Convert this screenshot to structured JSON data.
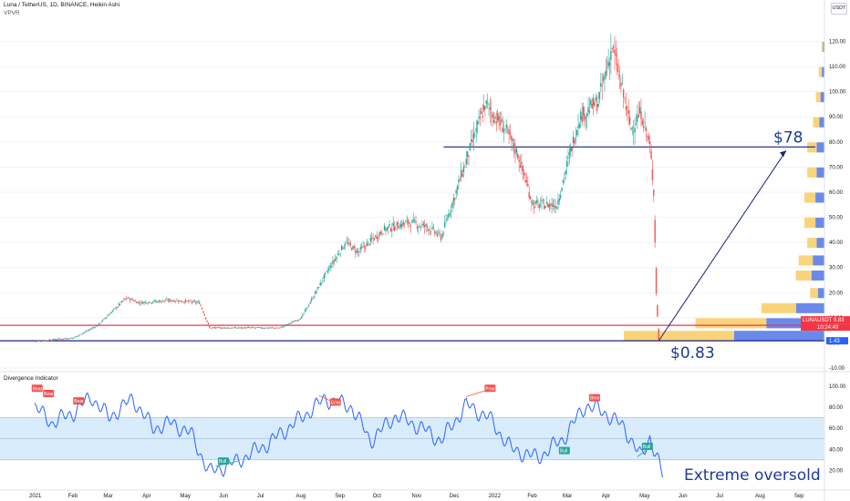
{
  "header": {
    "symbol_title": "Luna / TetherUS, 1D, BINANCE, Heikin Ashi",
    "indicator": "VPVR",
    "currency_button": "USDT"
  },
  "oscillator": {
    "title": "Divergence Indicator"
  },
  "colors": {
    "up": "#26a69a",
    "down": "#ef5350",
    "trendline": "#1a237e",
    "hline_red": "#f23645",
    "vp_yellow": "#f9cd63",
    "vp_blue": "#4f76e8",
    "band": "#d9ecfb",
    "osc_line": "#2962ff",
    "annotation": "#1f3a9a"
  },
  "chart_data": [
    {
      "type": "candlestick",
      "title": "Luna / TetherUS, 1D, BINANCE, Heikin Ashi",
      "x_tick_labels": [
        "2021",
        "Feb",
        "Mar",
        "Apr",
        "May",
        "Jun",
        "Jul",
        "Aug",
        "Sep",
        "Oct",
        "Nov",
        "Dec",
        "2022",
        "Feb",
        "Mar",
        "Apr",
        "May",
        "Jun",
        "Jul",
        "Aug",
        "Sep"
      ],
      "y_tick_labels": [
        "120.00",
        "110.00",
        "100.00",
        "90.00",
        "80.00",
        "70.00",
        "60.00",
        "50.00",
        "40.00",
        "30.00",
        "20.00",
        "10.00",
        "0.00",
        "-10.00"
      ],
      "ylim": [
        -10,
        122
      ],
      "key_points": [
        {
          "x": "2021-01-01",
          "y": 0.7
        },
        {
          "x": "2021-02-01",
          "y": 2
        },
        {
          "x": "2021-02-20",
          "y": 7
        },
        {
          "x": "2021-03-15",
          "y": 18
        },
        {
          "x": "2021-03-25",
          "y": 16
        },
        {
          "x": "2021-04-20",
          "y": 17
        },
        {
          "x": "2021-05-12",
          "y": 16
        },
        {
          "x": "2021-05-20",
          "y": 6
        },
        {
          "x": "2021-06-15",
          "y": 6
        },
        {
          "x": "2021-07-15",
          "y": 6
        },
        {
          "x": "2021-08-01",
          "y": 10
        },
        {
          "x": "2021-08-20",
          "y": 27
        },
        {
          "x": "2021-09-05",
          "y": 40
        },
        {
          "x": "2021-09-15",
          "y": 36
        },
        {
          "x": "2021-10-05",
          "y": 45
        },
        {
          "x": "2021-10-25",
          "y": 48
        },
        {
          "x": "2021-11-10",
          "y": 46
        },
        {
          "x": "2021-11-20",
          "y": 42
        },
        {
          "x": "2021-12-05",
          "y": 65
        },
        {
          "x": "2021-12-25",
          "y": 95
        },
        {
          "x": "2022-01-10",
          "y": 85
        },
        {
          "x": "2022-01-20",
          "y": 75
        },
        {
          "x": "2022-02-01",
          "y": 55
        },
        {
          "x": "2022-02-20",
          "y": 55
        },
        {
          "x": "2022-03-10",
          "y": 90
        },
        {
          "x": "2022-03-25",
          "y": 96
        },
        {
          "x": "2022-04-05",
          "y": 118
        },
        {
          "x": "2022-04-20",
          "y": 85
        },
        {
          "x": "2022-04-28",
          "y": 92
        },
        {
          "x": "2022-05-05",
          "y": 78
        },
        {
          "x": "2022-05-08",
          "y": 60
        },
        {
          "x": "2022-05-10",
          "y": 20
        },
        {
          "x": "2022-05-12",
          "y": 0.83
        }
      ],
      "horizontal_lines": [
        {
          "name": "resistance-78",
          "y": 78,
          "color": "#1a237e"
        },
        {
          "name": "red-level",
          "y": 7,
          "color": "#f23645"
        },
        {
          "name": "support-low",
          "y": 0.83,
          "color": "#1a237e"
        }
      ],
      "annotations": [
        "$78",
        "$0.83",
        "Extreme oversold"
      ],
      "price_labels": {
        "last": "LUNAUSDT  9.83",
        "countdown": "10:24:49",
        "low": "1.43"
      },
      "volume_profile": [
        {
          "price": 118,
          "size": 1
        },
        {
          "price": 108,
          "size": 2
        },
        {
          "price": 98,
          "size": 3
        },
        {
          "price": 88,
          "size": 4
        },
        {
          "price": 78,
          "size": 6
        },
        {
          "price": 68,
          "size": 6
        },
        {
          "price": 58,
          "size": 7
        },
        {
          "price": 48,
          "size": 7
        },
        {
          "price": 40,
          "size": 6
        },
        {
          "price": 33,
          "size": 9
        },
        {
          "price": 27,
          "size": 10
        },
        {
          "price": 20,
          "size": 5
        },
        {
          "price": 14,
          "size": 22
        },
        {
          "price": 8,
          "size": 45
        },
        {
          "price": 3,
          "size": 70
        }
      ]
    },
    {
      "type": "line",
      "title": "Divergence Indicator",
      "y_tick_labels": [
        "100.00",
        "80.00",
        "60.00",
        "40.00",
        "20.00"
      ],
      "ylim": [
        10,
        105
      ],
      "band": [
        30,
        70
      ],
      "midline": 50,
      "key_points": [
        {
          "x": "2021-01-01",
          "y": 80
        },
        {
          "x": "2021-01-15",
          "y": 65
        },
        {
          "x": "2021-02-01",
          "y": 75
        },
        {
          "x": "2021-02-15",
          "y": 90
        },
        {
          "x": "2021-03-01",
          "y": 70
        },
        {
          "x": "2021-03-20",
          "y": 88
        },
        {
          "x": "2021-04-05",
          "y": 60
        },
        {
          "x": "2021-04-20",
          "y": 65
        },
        {
          "x": "2021-05-05",
          "y": 55
        },
        {
          "x": "2021-05-20",
          "y": 18
        },
        {
          "x": "2021-06-10",
          "y": 28
        },
        {
          "x": "2021-07-05",
          "y": 45
        },
        {
          "x": "2021-08-01",
          "y": 70
        },
        {
          "x": "2021-08-20",
          "y": 88
        },
        {
          "x": "2021-09-10",
          "y": 80
        },
        {
          "x": "2021-09-25",
          "y": 48
        },
        {
          "x": "2021-10-15",
          "y": 72
        },
        {
          "x": "2021-11-05",
          "y": 60
        },
        {
          "x": "2021-11-20",
          "y": 48
        },
        {
          "x": "2021-12-10",
          "y": 82
        },
        {
          "x": "2021-12-28",
          "y": 70
        },
        {
          "x": "2022-01-15",
          "y": 40
        },
        {
          "x": "2022-02-05",
          "y": 32
        },
        {
          "x": "2022-02-25",
          "y": 50
        },
        {
          "x": "2022-03-15",
          "y": 82
        },
        {
          "x": "2022-03-30",
          "y": 75
        },
        {
          "x": "2022-04-15",
          "y": 60
        },
        {
          "x": "2022-04-28",
          "y": 32
        },
        {
          "x": "2022-05-05",
          "y": 52
        },
        {
          "x": "2022-05-15",
          "y": 15
        }
      ],
      "divergence_labels": [
        "Bear",
        "Bear",
        "Bear",
        "Bull",
        "Bear",
        "Bear",
        "Bull",
        "Bear",
        "Bull"
      ]
    }
  ]
}
